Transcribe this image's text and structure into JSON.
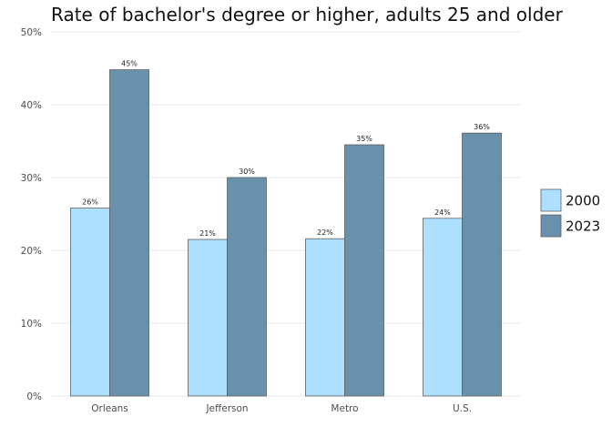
{
  "chart_data": {
    "type": "bar",
    "title": "Rate of bachelor's degree or higher, adults 25 and older",
    "xlabel": "",
    "ylabel": "",
    "categories": [
      "Orleans",
      "Jefferson",
      "Metro",
      "U.S."
    ],
    "series": [
      {
        "name": "2000",
        "values": [
          0.258,
          0.215,
          0.216,
          0.244
        ],
        "labels": [
          "26%",
          "21%",
          "22%",
          "24%"
        ],
        "color": "#addfff"
      },
      {
        "name": "2023",
        "values": [
          0.448,
          0.3,
          0.345,
          0.361
        ],
        "labels": [
          "45%",
          "30%",
          "35%",
          "36%"
        ],
        "color": "#6991ac"
      }
    ],
    "ylim": [
      0,
      0.5
    ],
    "yticks": [
      0,
      0.1,
      0.2,
      0.3,
      0.4,
      0.5
    ],
    "ytick_labels": [
      "0%",
      "10%",
      "20%",
      "30%",
      "40%",
      "50%"
    ],
    "grid": "horizontal",
    "legend_position": "right"
  }
}
